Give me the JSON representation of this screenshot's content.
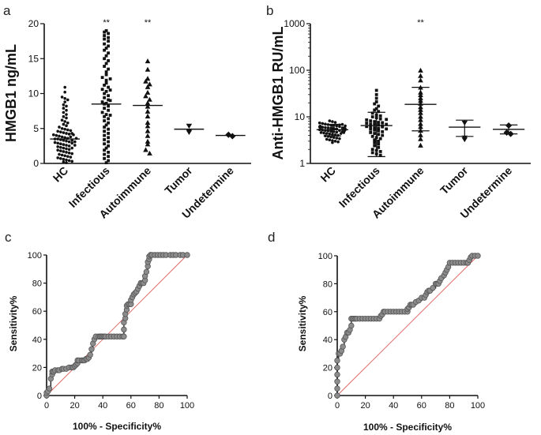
{
  "colors": {
    "ink": "#111111",
    "roc_marker_fill": "#8c8c8c",
    "roc_marker_edge": "#555555",
    "diagonal": "#e06060"
  },
  "panel_letters": [
    "a",
    "b",
    "c",
    "d"
  ],
  "chart_data": [
    {
      "panel": "a",
      "type": "scatter",
      "ylabel": "HMGB1 ng/mL",
      "ylim": [
        0,
        20
      ],
      "yticks": [
        "0",
        "5",
        "10",
        "15",
        "20"
      ],
      "categories": [
        "HC",
        "Infectious",
        "Autoimmune",
        "Tumor",
        "Undetermine"
      ],
      "significance": [
        "",
        "**",
        "**",
        "",
        ""
      ],
      "markers": [
        "circle",
        "square",
        "triangle",
        "triangle-down",
        "diamond"
      ],
      "series": [
        {
          "name": "HC",
          "mean": 3.5,
          "values": [
            10.9,
            10.2,
            9.5,
            9.3,
            9.1,
            8.8,
            8.4,
            8.2,
            7.9,
            7.6,
            7.3,
            7.0,
            6.7,
            6.5,
            6.2,
            6.0,
            5.8,
            5.6,
            5.4,
            5.2,
            5.0,
            4.9,
            4.8,
            4.7,
            4.6,
            4.5,
            4.4,
            4.3,
            4.2,
            4.1,
            4.0,
            3.9,
            3.8,
            3.7,
            3.6,
            3.5,
            3.5,
            3.4,
            3.3,
            3.2,
            3.1,
            3.0,
            2.9,
            2.8,
            2.7,
            2.6,
            2.5,
            2.4,
            2.3,
            2.2,
            2.1,
            2.0,
            1.9,
            1.8,
            1.7,
            1.6,
            1.5,
            1.4,
            1.3,
            1.2,
            1.1,
            1.0,
            0.9,
            0.8,
            0.7,
            0.6,
            0.5,
            0.4,
            0.3,
            0.2,
            0.1,
            3.8,
            3.3,
            2.9,
            4.3,
            2.6,
            3.1,
            4.1,
            2.2,
            3.6
          ]
        },
        {
          "name": "Infectious",
          "mean": 8.5,
          "values": [
            19.0,
            18.8,
            18.6,
            18.3,
            18.0,
            17.8,
            17.5,
            17.1,
            16.8,
            16.5,
            16.2,
            15.8,
            15.4,
            15.0,
            14.7,
            14.3,
            13.9,
            13.5,
            13.1,
            12.7,
            12.3,
            11.9,
            11.5,
            11.2,
            10.9,
            10.6,
            10.3,
            10.0,
            9.7,
            9.4,
            9.1,
            8.8,
            8.5,
            8.2,
            7.9,
            7.6,
            7.3,
            7.0,
            6.7,
            6.4,
            6.1,
            5.8,
            5.5,
            5.2,
            4.9,
            4.6,
            4.3,
            4.0,
            3.7,
            3.4,
            3.1,
            2.8,
            2.5,
            2.2,
            1.9,
            1.6,
            1.3,
            1.0,
            0.7,
            0.4,
            0.1,
            8.6,
            9.0,
            10.5,
            12.1,
            6.9
          ]
        },
        {
          "name": "Autoimmune",
          "mean": 8.3,
          "values": [
            14.6,
            13.4,
            12.1,
            11.7,
            11.3,
            10.9,
            10.1,
            9.6,
            9.1,
            8.6,
            8.1,
            7.4,
            6.7,
            5.8,
            5.3,
            4.6,
            3.9,
            3.1,
            2.7,
            1.9,
            1.4
          ]
        },
        {
          "name": "Tumor",
          "mean": 4.9,
          "values": [
            5.4,
            4.7,
            4.5
          ]
        },
        {
          "name": "Undetermine",
          "mean": 4.0,
          "values": [
            4.1,
            3.9
          ]
        }
      ]
    },
    {
      "panel": "b",
      "type": "scatter",
      "ylabel": "Anti-HMGB1 RU/mL",
      "yscale": "log",
      "ylim": [
        1,
        1000
      ],
      "yticks": [
        "1",
        "10",
        "100",
        "1000"
      ],
      "categories": [
        "HC",
        "Infectious",
        "Autoimmune",
        "Tumor",
        "Undetermine"
      ],
      "significance": [
        "",
        "",
        "**",
        "",
        ""
      ],
      "markers": [
        "circle",
        "square",
        "triangle",
        "triangle-down",
        "diamond"
      ],
      "series": [
        {
          "name": "HC",
          "mean": 5.3,
          "sd_low": 3.9,
          "sd_high": 6.9,
          "values": [
            8.2,
            7.9,
            7.6,
            7.4,
            7.2,
            7.0,
            6.8,
            6.6,
            6.5,
            6.4,
            6.3,
            6.2,
            6.1,
            6.0,
            5.9,
            5.8,
            5.7,
            5.6,
            5.5,
            5.4,
            5.3,
            5.2,
            5.1,
            5.0,
            4.9,
            4.8,
            4.7,
            4.6,
            4.5,
            4.4,
            4.3,
            4.2,
            4.1,
            4.0,
            3.9,
            3.8,
            3.7,
            3.6,
            3.5,
            3.4,
            3.3,
            3.2,
            3.1,
            3.0,
            2.9,
            2.8,
            6.7,
            6.2,
            5.8,
            5.5,
            5.1,
            4.8,
            4.4,
            6.9,
            5.6,
            5.3,
            5.0,
            4.6,
            6.4,
            5.9
          ]
        },
        {
          "name": "Infectious",
          "mean": 6.5,
          "sd_low": 1.4,
          "sd_high": 12.5,
          "values": [
            37,
            30,
            25,
            21,
            19,
            17,
            15,
            14,
            13,
            12,
            11,
            10.5,
            10,
            9.5,
            9,
            8.6,
            8.2,
            7.9,
            7.6,
            7.3,
            7.0,
            6.8,
            6.6,
            6.4,
            6.2,
            6.0,
            5.8,
            5.6,
            5.4,
            5.2,
            5.0,
            4.8,
            4.6,
            4.4,
            4.2,
            4.0,
            3.8,
            3.6,
            3.4,
            3.2,
            3.0,
            2.8,
            2.6,
            2.4,
            2.2,
            2.0,
            1.9,
            1.8,
            1.7,
            1.6,
            1.5,
            7.5,
            6.9,
            6.1,
            5.5,
            8.8
          ]
        },
        {
          "name": "Autoimmune",
          "mean": 18.5,
          "sd_low": 5.0,
          "sd_high": 43,
          "values": [
            98,
            75,
            60,
            42,
            33,
            29,
            25,
            22,
            19,
            16,
            14,
            12,
            10,
            8.5,
            7,
            6,
            5,
            4,
            3.3,
            2.4
          ]
        },
        {
          "name": "Tumor",
          "mean": 6.0,
          "sd_low": 3.8,
          "sd_high": 8.5,
          "values": [
            7.5,
            3.6,
            3.3
          ]
        },
        {
          "name": "Undetermine",
          "mean": 5.4,
          "sd_low": 4.3,
          "sd_high": 6.7,
          "values": [
            6.5,
            4.6,
            4.3
          ]
        }
      ]
    },
    {
      "panel": "c",
      "type": "line",
      "xlabel": "100% - Specificity%",
      "ylabel": "Sensitivity%",
      "xlim": [
        0,
        100
      ],
      "ylim": [
        0,
        100
      ],
      "xticks": [
        "0",
        "20",
        "40",
        "60",
        "80",
        "100"
      ],
      "yticks": [
        "0",
        "20",
        "40",
        "60",
        "80",
        "100"
      ],
      "diagonal": true,
      "x": [
        0,
        0,
        1,
        2,
        3,
        4,
        4,
        5,
        6,
        8,
        9,
        11,
        12,
        14,
        16,
        18,
        19,
        20,
        21,
        22,
        22,
        23,
        25,
        26,
        27,
        28,
        29,
        30,
        31,
        32,
        33,
        34,
        35,
        37,
        38,
        38,
        39,
        39,
        40,
        41,
        42,
        44,
        46,
        48,
        50,
        52,
        54,
        55,
        55,
        55,
        56,
        56,
        57,
        57,
        58,
        59,
        60,
        60,
        61,
        62,
        63,
        64,
        65,
        66,
        67,
        67,
        68,
        69,
        70,
        70,
        71,
        72,
        72,
        73,
        73,
        74,
        74,
        75,
        77,
        79,
        81,
        83,
        85,
        88,
        90,
        92,
        95,
        97,
        100
      ],
      "y": [
        0,
        2,
        3,
        5,
        12,
        15,
        17,
        17,
        18,
        18,
        18,
        19,
        19,
        19,
        20,
        20,
        20,
        21,
        22,
        23,
        25,
        25,
        25,
        25,
        25,
        26,
        26,
        27,
        29,
        33,
        37,
        40,
        42,
        42,
        42,
        42,
        42,
        42,
        42,
        42,
        42,
        42,
        42,
        42,
        42,
        42,
        42,
        42,
        47,
        52,
        55,
        58,
        61,
        64,
        65,
        65,
        65,
        68,
        70,
        72,
        73,
        74,
        76,
        78,
        80,
        80,
        80,
        80,
        82,
        85,
        88,
        92,
        95,
        97,
        99,
        100,
        100,
        100,
        100,
        100,
        100,
        100,
        100,
        100,
        100,
        100,
        100,
        100,
        100
      ]
    },
    {
      "panel": "d",
      "type": "line",
      "xlabel": "100% - Specificity%",
      "ylabel": "Sensitivity%",
      "xlim": [
        0,
        100
      ],
      "ylim": [
        0,
        100
      ],
      "xticks": [
        "0",
        "20",
        "40",
        "60",
        "80",
        "100"
      ],
      "yticks": [
        "0",
        "20",
        "40",
        "60",
        "80",
        "100"
      ],
      "diagonal": true,
      "x": [
        0,
        0,
        0,
        0,
        0,
        0,
        1,
        2,
        3,
        4,
        5,
        6,
        7,
        8,
        9,
        10,
        10,
        11,
        12,
        13,
        14,
        16,
        18,
        20,
        22,
        24,
        26,
        28,
        30,
        31,
        32,
        33,
        34,
        36,
        38,
        40,
        42,
        44,
        46,
        48,
        50,
        50,
        51,
        52,
        53,
        54,
        56,
        58,
        60,
        62,
        63,
        64,
        65,
        66,
        68,
        70,
        71,
        72,
        73,
        74,
        76,
        77,
        78,
        79,
        80,
        82,
        84,
        86,
        88,
        90,
        92,
        93,
        94,
        95,
        96,
        98,
        100
      ],
      "y": [
        0,
        5,
        10,
        15,
        20,
        25,
        30,
        30,
        32,
        35,
        40,
        42,
        45,
        45,
        47,
        50,
        55,
        55,
        55,
        55,
        55,
        55,
        55,
        55,
        55,
        55,
        55,
        55,
        55,
        57,
        58,
        60,
        60,
        60,
        60,
        60,
        60,
        60,
        60,
        60,
        60,
        62,
        63,
        65,
        65,
        65,
        67,
        68,
        70,
        70,
        72,
        74,
        75,
        75,
        77,
        80,
        80,
        80,
        82,
        84,
        86,
        88,
        90,
        92,
        95,
        95,
        95,
        95,
        95,
        95,
        95,
        95,
        97,
        99,
        100,
        100,
        100
      ]
    }
  ]
}
